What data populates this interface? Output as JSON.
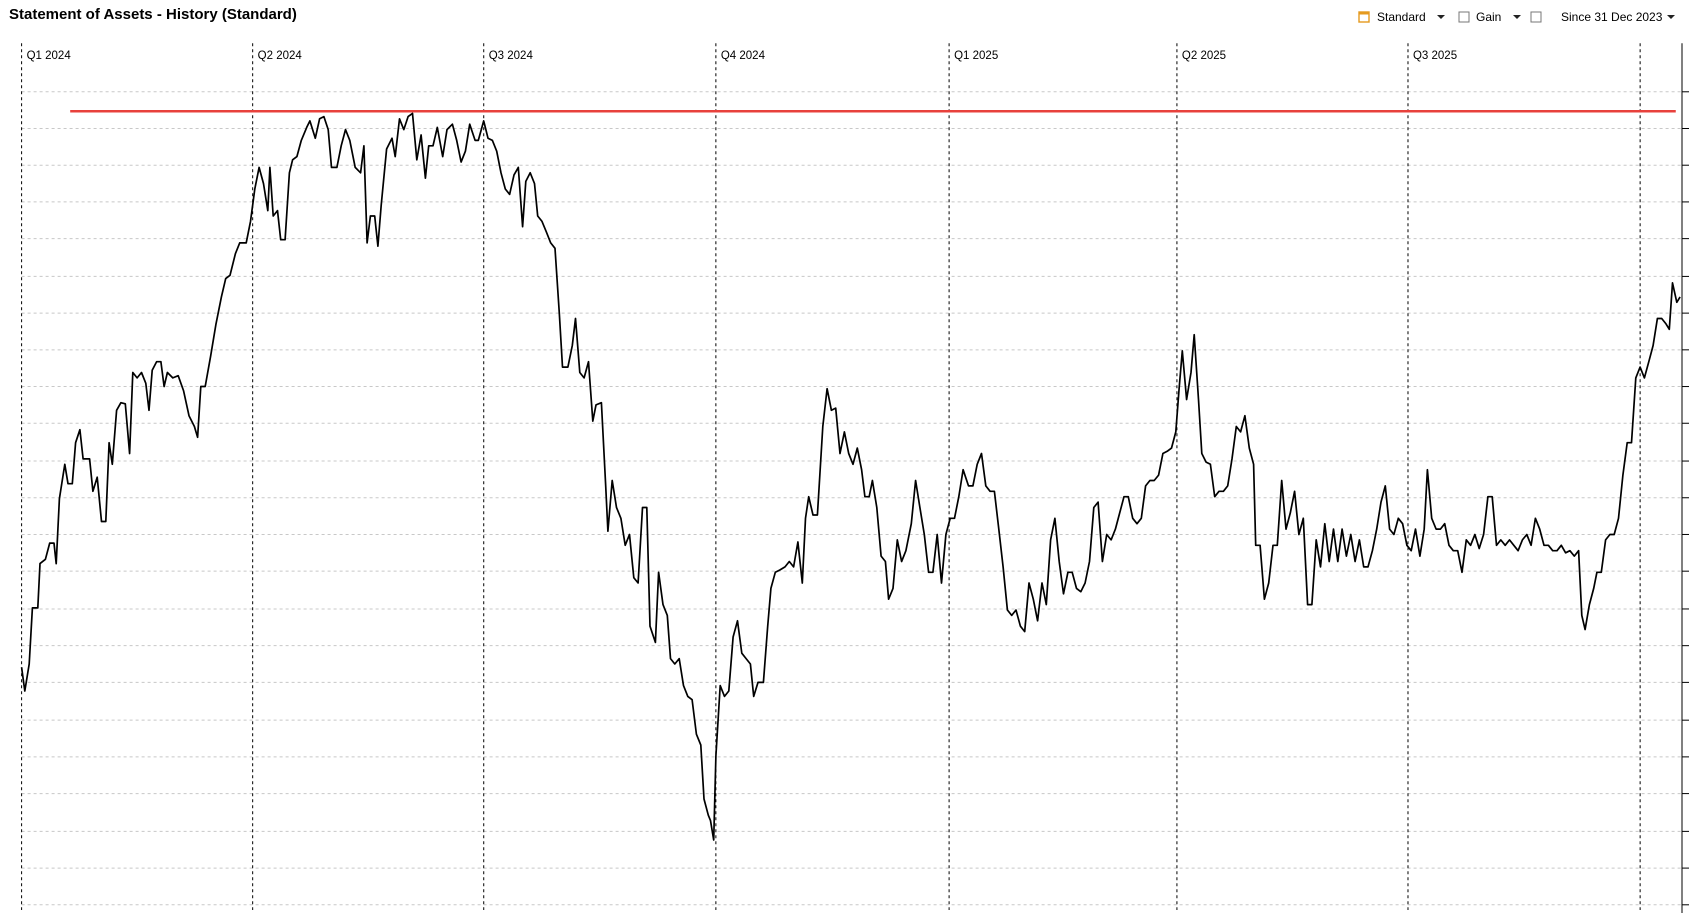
{
  "chart_data": {
    "type": "line",
    "title": "Statement of Assets - History (Standard)",
    "x": [
      20,
      23,
      27,
      30,
      35,
      37,
      42,
      46,
      50,
      52,
      55,
      60,
      63,
      67,
      70,
      74,
      77,
      83,
      86,
      90,
      94,
      98,
      101,
      104,
      108,
      112,
      116,
      120,
      123,
      127,
      131,
      135,
      138,
      141,
      145,
      149,
      152,
      155,
      160,
      165,
      170,
      175,
      180,
      183,
      186,
      190,
      195,
      200,
      205,
      209,
      213,
      218,
      222,
      228,
      232,
      236,
      240,
      244,
      248,
      250,
      253,
      257,
      260,
      264,
      268,
      271,
      275,
      279,
      284,
      287,
      292,
      296,
      300,
      304,
      307,
      312,
      316,
      320,
      324,
      329,
      334,
      337,
      340,
      343,
      347,
      350,
      353,
      358,
      363,
      366,
      370,
      374,
      378,
      382,
      386,
      390,
      394,
      397,
      401,
      405,
      410,
      414,
      419,
      423,
      427,
      431,
      435,
      440,
      443,
      448,
      452,
      456,
      460,
      464,
      468,
      472,
      476,
      480,
      484,
      487,
      491,
      495,
      498,
      502,
      506,
      510,
      514,
      518,
      521,
      526,
      530,
      533,
      537,
      541,
      545,
      549,
      552,
      557,
      561,
      563,
      567,
      571,
      575,
      579,
      583,
      587,
      591,
      595,
      599,
      602,
      607,
      610,
      614,
      618,
      621,
      625,
      629,
      633,
      637,
      641,
      645,
      649,
      652,
      656,
      658,
      661,
      663,
      667,
      671,
      675,
      679,
      683,
      687,
      691,
      695,
      698,
      702,
      707,
      711,
      714,
      718,
      722,
      727,
      731,
      735,
      739,
      743,
      746,
      749,
      753,
      757,
      762,
      766,
      770,
      774,
      778,
      782,
      786,
      790,
      794,
      798,
      801,
      805,
      808,
      812,
      816,
      820,
      823,
      827,
      831,
      835,
      839,
      844,
      848,
      852,
      856,
      860,
      864,
      868,
      872,
      876,
      880,
      884,
      888,
      892,
      897,
      901,
      905,
      909,
      913,
      917,
      921,
      925,
      929,
      933,
      937,
      941,
      945,
      949,
      953,
      957,
      961,
      965,
      969,
      973,
      977,
      981,
      985,
      989,
      993,
      997,
      1001,
      1005,
      1009,
      1013,
      1017,
      1021,
      1025,
      1029,
      1033,
      1037,
      1041,
      1045,
      1049,
      1053,
      1057,
      1061,
      1065,
      1069,
      1073,
      1077,
      1081,
      1085,
      1089,
      1092,
      1095,
      1099,
      1103,
      1106,
      1110,
      1113,
      1117,
      1121,
      1125,
      1129,
      1133,
      1137,
      1141,
      1145,
      1149,
      1153,
      1157,
      1161,
      1163,
      1167,
      1171,
      1175,
      1179,
      1183,
      1187,
      1191,
      1195,
      1199,
      1203,
      1207,
      1211,
      1215,
      1219,
      1223,
      1227,
      1231,
      1235,
      1239,
      1243,
      1247,
      1251,
      1255,
      1259,
      1263,
      1267,
      1271,
      1275,
      1279,
      1283,
      1287,
      1291,
      1295,
      1299,
      1303,
      1307,
      1311,
      1315,
      1319,
      1322,
      1326,
      1330,
      1334,
      1338,
      1342,
      1346,
      1350,
      1354,
      1358,
      1362,
      1366,
      1370,
      1374,
      1378,
      1382,
      1386,
      1390,
      1394,
      1398,
      1402,
      1406,
      1410,
      1414,
      1418,
      1422,
      1426,
      1430,
      1434,
      1438,
      1442,
      1446,
      1450,
      1454,
      1458,
      1462,
      1465,
      1468,
      1472,
      1476,
      1479,
      1483,
      1487,
      1491,
      1495,
      1499,
      1503,
      1507,
      1511,
      1515,
      1519,
      1523,
      1527,
      1531,
      1535,
      1539,
      1543,
      1546,
      1549,
      1553,
      1556
    ],
    "xlim": [
      20,
      1560
    ],
    "xticks": [
      {
        "value": 20,
        "label": "Q1 2024"
      },
      {
        "value": 234,
        "label": "Q2 2024"
      },
      {
        "value": 448,
        "label": "Q3 2024"
      },
      {
        "value": 663,
        "label": "Q4 2024"
      },
      {
        "value": 879,
        "label": "Q1 2025"
      },
      {
        "value": 1090,
        "label": "Q2 2025"
      },
      {
        "value": 1304,
        "label": "Q3 2025"
      },
      {
        "value": 1519,
        "label": null
      }
    ],
    "ylim": [
      12,
      810
    ],
    "yticks": [
      12,
      46,
      80,
      115,
      149,
      183,
      218,
      252,
      286,
      321,
      355,
      389,
      423,
      458,
      492,
      526,
      560,
      594,
      629,
      663,
      697,
      731,
      765
    ],
    "grid": true,
    "series": [
      {
        "color": "#000000",
        "values": [
          232,
          210,
          235,
          287,
          287,
          328,
          332,
          347,
          347,
          328,
          388,
          420,
          402,
          402,
          440,
          452,
          425,
          425,
          395,
          408,
          367,
          367,
          440,
          420,
          470,
          477,
          476,
          430,
          505,
          500,
          505,
          495,
          470,
          507,
          515,
          515,
          492,
          505,
          500,
          502,
          488,
          465,
          455,
          445,
          492,
          492,
          520,
          550,
          575,
          592,
          595,
          615,
          625,
          625,
          645,
          675,
          695,
          680,
          655,
          695,
          650,
          655,
          628,
          628,
          690,
          702,
          705,
          720,
          732,
          738,
          722,
          740,
          742,
          730,
          695,
          695,
          715,
          730,
          720,
          695,
          690,
          715,
          625,
          650,
          650,
          622,
          660,
          712,
          722,
          705,
          740,
          730,
          742,
          745,
          702,
          725,
          685,
          715,
          715,
          732,
          705,
          730,
          735,
          720,
          700,
          710,
          735,
          720,
          720,
          738,
          722,
          720,
          710,
          690,
          675,
          670,
          688,
          695,
          640,
          682,
          690,
          680,
          650,
          645,
          635,
          625,
          620,
          560,
          510,
          510,
          530,
          555,
          505,
          500,
          515,
          460,
          475,
          477,
          400,
          358,
          405,
          380,
          370,
          345,
          355,
          315,
          310,
          380,
          380,
          270,
          255,
          320,
          290,
          280,
          240,
          235,
          240,
          215,
          205,
          202,
          170,
          160,
          110,
          95,
          90,
          72,
          150,
          215,
          205,
          210,
          260,
          275,
          245,
          240,
          235,
          205,
          218,
          218,
          270,
          305,
          320,
          322,
          325,
          330,
          325,
          348,
          310,
          370,
          390,
          373,
          373,
          455,
          490,
          470,
          472,
          430,
          450,
          430,
          420,
          435,
          415,
          390,
          390,
          405,
          380,
          335,
          330,
          295,
          305,
          350,
          330,
          340,
          365,
          405,
          380,
          355,
          320,
          320,
          355,
          310,
          355,
          370,
          370,
          390,
          415,
          400,
          400,
          420,
          430,
          400,
          395,
          395,
          360,
          325,
          285,
          280,
          285,
          270,
          265,
          310,
          295,
          275,
          310,
          290,
          350,
          370,
          330,
          300,
          320,
          320,
          305,
          302,
          310,
          330,
          380,
          385,
          330,
          355,
          350,
          360,
          375,
          390,
          390,
          370,
          365,
          370,
          400,
          405,
          405,
          410,
          430,
          432,
          435,
          450,
          490,
          525,
          480,
          505,
          540,
          480,
          430,
          422,
          420,
          390,
          395,
          395,
          400,
          425,
          455,
          450,
          465,
          435,
          420,
          345,
          345,
          295,
          310,
          345,
          345,
          405,
          360,
          375,
          395,
          355,
          370,
          290,
          290,
          350,
          325,
          365,
          330,
          360,
          330,
          360,
          335,
          355,
          330,
          350,
          325,
          325,
          340,
          360,
          385,
          400,
          360,
          355,
          370,
          365,
          345,
          340,
          360,
          335,
          360,
          415,
          370,
          360,
          360,
          365,
          345,
          340,
          340,
          320,
          350,
          345,
          355,
          342,
          355,
          390,
          390,
          345,
          350,
          345,
          350,
          345,
          340,
          350,
          355,
          345,
          370,
          360,
          345,
          345,
          340,
          340,
          345,
          338,
          340,
          335,
          340,
          280,
          267,
          290,
          305,
          320,
          320,
          350,
          355,
          355,
          370,
          410,
          440,
          440,
          500,
          510,
          500,
          515,
          530,
          555,
          555,
          550,
          545,
          588,
          570,
          575
        ]
      }
    ],
    "reference_line": {
      "y": 747,
      "x": [
        65,
        1552
      ],
      "color": "#e8413c"
    }
  },
  "toolbar": {
    "items": [
      {
        "label": "Standard"
      },
      {
        "label": "Gain"
      },
      {
        "label": "Since 31 Dec 2023"
      }
    ]
  }
}
